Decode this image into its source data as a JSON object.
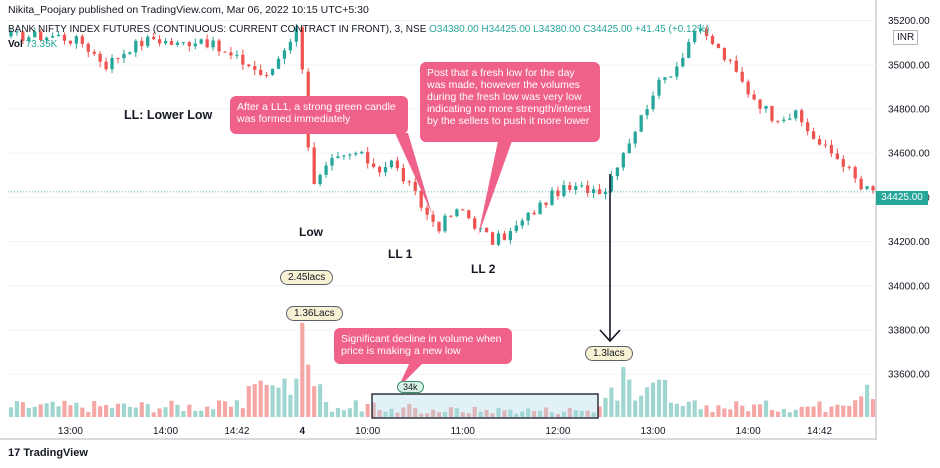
{
  "header": {
    "publisher": "Nikita_Poojary published on TradingView.com, Mar 06, 2022 10:15 UTC+5:30",
    "symbol": "BANK NIFTY INDEX FUTURES (CONTINUOUS: CURRENT CONTRACT IN FRONT), 3, NSE",
    "ohlc": "O34380.00  H34425.00  L34380.00  C34425.00  +41.45 (+0.12%)",
    "vol_label": "Vol",
    "vol_value": "73.35K",
    "currency": "INR"
  },
  "annotations": {
    "lower_low": "LL: Lower Low",
    "low": "Low",
    "ll1": "LL 1",
    "ll2": "LL 2",
    "callout_green": "After a LL1, a strong green candle was formed immediately",
    "callout_volume_low": "Post that a fresh low for the day was made, however the volumes during the fresh low was very low indicating no more strength/interest by the sellers to push it more lower",
    "callout_decline": "Significant decline in volume when price is making a new low",
    "vol_245": "2.45lacs",
    "vol_136": "1.36Lacs",
    "vol_34k": "34k",
    "vol_13": "1.3lacs"
  },
  "footer": {
    "brand": "TradingView"
  },
  "colors": {
    "up": "#26a69a",
    "down": "#ef5350",
    "vol_up": "#9fd6cf",
    "vol_down": "#f5a7a6",
    "callout": "#f0618a"
  },
  "chart_data": {
    "type": "candlestick",
    "current_price_label": "34425.00",
    "y_ticks": [
      "35200.00",
      "35000.00",
      "34800.00",
      "34600.00",
      "34400.00",
      "34200.00",
      "34000.00",
      "33800.00",
      "33600.00"
    ],
    "y_tick_values": [
      35200,
      35000,
      34800,
      34600,
      34400,
      34200,
      34000,
      33800,
      33600
    ],
    "ylim": [
      33420,
      35230
    ],
    "x_ticks": [
      "13:00",
      "14:00",
      "14:42",
      "4",
      "10:00",
      "11:00",
      "12:00",
      "13:00",
      "14:00",
      "14:42"
    ],
    "x_tick_index": [
      10,
      26,
      38,
      49,
      60,
      76,
      92,
      108,
      124,
      136
    ],
    "bar_count": 146,
    "gap_after_index": 49,
    "anchors": [
      [
        0,
        35130
      ],
      [
        8,
        35130
      ],
      [
        12,
        35100
      ],
      [
        16,
        35000
      ],
      [
        20,
        35080
      ],
      [
        24,
        35120
      ],
      [
        28,
        35090
      ],
      [
        32,
        35120
      ],
      [
        36,
        35050
      ],
      [
        40,
        35000
      ],
      [
        43,
        34940
      ],
      [
        46,
        35080
      ],
      [
        48,
        35160
      ],
      [
        49,
        35000
      ],
      [
        50,
        34640
      ],
      [
        51,
        34450
      ],
      [
        54,
        34560
      ],
      [
        58,
        34600
      ],
      [
        62,
        34530
      ],
      [
        64,
        34560
      ],
      [
        67,
        34450
      ],
      [
        70,
        34320
      ],
      [
        72,
        34270
      ],
      [
        74,
        34320
      ],
      [
        76,
        34340
      ],
      [
        79,
        34250
      ],
      [
        81,
        34200
      ],
      [
        84,
        34240
      ],
      [
        88,
        34340
      ],
      [
        92,
        34430
      ],
      [
        96,
        34440
      ],
      [
        100,
        34440
      ],
      [
        102,
        34560
      ],
      [
        106,
        34760
      ],
      [
        108,
        34880
      ],
      [
        112,
        35000
      ],
      [
        115,
        35160
      ],
      [
        118,
        35100
      ],
      [
        121,
        35000
      ],
      [
        124,
        34880
      ],
      [
        128,
        34770
      ],
      [
        132,
        34770
      ],
      [
        136,
        34640
      ],
      [
        140,
        34560
      ],
      [
        143,
        34440
      ],
      [
        145,
        34425
      ]
    ],
    "volume_unit": "lacs",
    "volume_ylim": [
      0,
      2.6
    ],
    "volume_highlights": [
      {
        "index": 48,
        "value": 1.0
      },
      {
        "index": 49,
        "value": 2.45
      },
      {
        "index": 50,
        "value": 1.36
      },
      {
        "index": 67,
        "value": 0.34
      },
      {
        "index": 103,
        "value": 1.3
      }
    ]
  }
}
